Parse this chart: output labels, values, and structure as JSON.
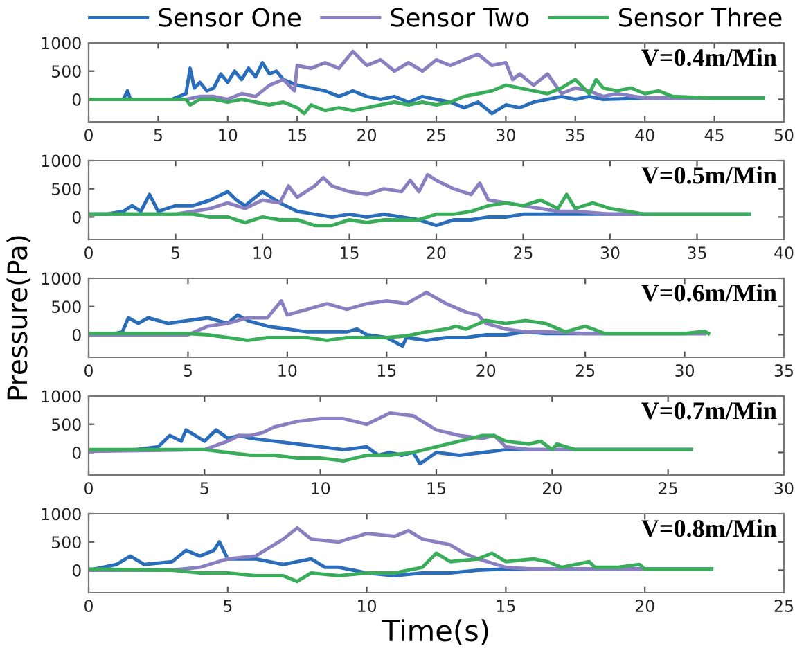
{
  "chart_data": [
    {
      "type": "line",
      "xlim": [
        0,
        50
      ],
      "xticks": [
        0,
        5,
        10,
        15,
        20,
        25,
        30,
        35,
        40,
        45,
        50
      ],
      "ylim": [
        -400,
        1000
      ],
      "yticks": [
        0,
        500,
        1000
      ],
      "grid": false,
      "legend": "top",
      "annotations": [
        "V=0.4m/Min"
      ],
      "series": [
        {
          "name": "Sensor One",
          "color": "#2a6ebb",
          "x": [
            0,
            2.5,
            2.8,
            3,
            6,
            6.5,
            7,
            7.3,
            7.6,
            8,
            8.5,
            9,
            9.5,
            10,
            10.5,
            11,
            11.5,
            12,
            12.5,
            13,
            13.5,
            14,
            15,
            16,
            17,
            18,
            19,
            20,
            21,
            22,
            23,
            24,
            25,
            26,
            27,
            28,
            29,
            30,
            31,
            32,
            33,
            34,
            35,
            36,
            37,
            40,
            45,
            48.5
          ],
          "values": [
            0,
            0,
            150,
            0,
            0,
            50,
            100,
            550,
            200,
            300,
            150,
            200,
            450,
            300,
            500,
            350,
            550,
            400,
            650,
            450,
            500,
            350,
            250,
            200,
            150,
            50,
            150,
            50,
            0,
            50,
            -50,
            50,
            0,
            -50,
            -150,
            -50,
            -250,
            -100,
            -150,
            -50,
            0,
            50,
            0,
            50,
            0,
            20,
            20,
            20
          ]
        },
        {
          "name": "Sensor Two",
          "color": "#8a7fc0",
          "x": [
            0,
            7,
            8,
            9,
            10,
            11,
            12,
            13,
            14,
            14.8,
            15,
            16,
            17,
            18,
            19,
            20,
            21,
            22,
            23,
            24,
            25,
            26,
            27,
            28,
            29,
            30,
            30.5,
            31,
            32,
            33,
            34,
            35,
            36,
            37,
            38,
            40,
            45,
            48.5
          ],
          "values": [
            0,
            0,
            50,
            50,
            0,
            100,
            50,
            250,
            350,
            150,
            600,
            550,
            650,
            550,
            850,
            600,
            700,
            500,
            650,
            500,
            700,
            600,
            700,
            800,
            600,
            650,
            350,
            450,
            250,
            450,
            100,
            200,
            150,
            50,
            100,
            20,
            20,
            20
          ]
        },
        {
          "name": "Sensor Three",
          "color": "#3aad5a",
          "x": [
            0,
            7,
            7.3,
            8,
            9,
            10,
            11,
            12,
            13,
            14,
            15,
            15.5,
            16,
            17,
            18,
            19,
            20,
            21,
            22,
            23,
            24,
            25,
            26,
            27,
            28,
            29,
            30,
            31,
            32,
            33,
            34,
            35,
            36,
            36.5,
            37,
            38,
            39,
            40,
            41,
            42,
            45,
            48.5
          ],
          "values": [
            0,
            0,
            -100,
            0,
            0,
            -50,
            0,
            -50,
            -100,
            -50,
            -150,
            -250,
            -100,
            -200,
            -150,
            -200,
            -150,
            -100,
            -50,
            -100,
            -50,
            -100,
            -50,
            50,
            100,
            150,
            250,
            200,
            150,
            100,
            200,
            350,
            100,
            350,
            200,
            150,
            200,
            100,
            150,
            50,
            20,
            20
          ]
        }
      ]
    },
    {
      "type": "line",
      "xlim": [
        0,
        40
      ],
      "xticks": [
        0,
        5,
        10,
        15,
        20,
        25,
        30,
        35,
        40
      ],
      "ylim": [
        -400,
        1000
      ],
      "yticks": [
        0,
        500,
        1000
      ],
      "grid": false,
      "annotations": [
        "V=0.5m/Min"
      ],
      "series": [
        {
          "color": "#2a6ebb",
          "x": [
            0,
            1,
            2,
            2.5,
            3,
            3.5,
            4,
            5,
            6,
            7,
            8,
            8.5,
            9,
            10,
            11,
            12,
            13,
            14,
            15,
            16,
            17,
            18,
            19,
            20,
            21,
            22,
            23,
            24,
            25,
            26,
            28,
            30,
            35,
            38
          ],
          "values": [
            50,
            50,
            100,
            200,
            100,
            400,
            100,
            200,
            200,
            300,
            450,
            300,
            200,
            450,
            250,
            100,
            50,
            0,
            50,
            0,
            50,
            0,
            -50,
            -150,
            -50,
            -50,
            0,
            0,
            50,
            50,
            50,
            50,
            50,
            50
          ]
        },
        {
          "color": "#8a7fc0",
          "x": [
            0,
            5,
            6,
            7,
            8,
            9,
            10,
            11,
            11.5,
            12,
            13,
            13.5,
            14,
            15,
            16,
            17,
            18,
            18.5,
            19,
            19.5,
            20,
            21,
            22,
            22.5,
            23,
            24,
            25,
            26,
            27,
            28,
            30,
            35,
            38
          ],
          "values": [
            50,
            50,
            100,
            150,
            250,
            150,
            300,
            250,
            550,
            350,
            550,
            700,
            550,
            450,
            400,
            500,
            450,
            650,
            450,
            750,
            650,
            500,
            400,
            600,
            300,
            250,
            200,
            150,
            100,
            100,
            50,
            50,
            50
          ]
        },
        {
          "color": "#3aad5a",
          "x": [
            0,
            6,
            7,
            8,
            9,
            10,
            11,
            12,
            13,
            14,
            15,
            16,
            17,
            18,
            19,
            20,
            21,
            22,
            23,
            24,
            25,
            26,
            27,
            27.5,
            28,
            29,
            30,
            31,
            32,
            35,
            38
          ],
          "values": [
            50,
            50,
            0,
            0,
            -100,
            0,
            -50,
            -50,
            -150,
            -150,
            -50,
            -100,
            -50,
            -50,
            -50,
            50,
            50,
            100,
            200,
            250,
            200,
            300,
            150,
            400,
            150,
            250,
            150,
            100,
            50,
            50,
            50
          ]
        }
      ]
    },
    {
      "type": "line",
      "xlim": [
        0,
        35
      ],
      "xticks": [
        0,
        5,
        10,
        15,
        20,
        25,
        30,
        35
      ],
      "ylim": [
        -400,
        1000
      ],
      "yticks": [
        0,
        500,
        1000
      ],
      "grid": false,
      "ylabel": "Pressure(Pa)",
      "annotations": [
        "V=0.6m/Min"
      ],
      "series": [
        {
          "color": "#2a6ebb",
          "x": [
            0,
            1,
            1.7,
            2,
            2.5,
            3,
            4,
            5,
            6,
            7,
            7.5,
            8,
            9,
            10,
            11,
            12,
            13,
            13.5,
            14,
            15,
            15.8,
            16,
            17,
            18,
            19,
            20,
            21,
            22,
            23,
            25,
            31
          ],
          "values": [
            20,
            0,
            50,
            300,
            200,
            300,
            200,
            250,
            300,
            200,
            350,
            250,
            150,
            100,
            50,
            50,
            50,
            100,
            0,
            -50,
            -200,
            -50,
            -100,
            -50,
            -50,
            0,
            0,
            50,
            20,
            20,
            20
          ]
        },
        {
          "color": "#8a7fc0",
          "x": [
            0,
            5,
            6,
            7,
            8,
            9,
            9.7,
            10,
            11,
            12,
            13,
            14,
            15,
            16,
            17,
            18,
            19,
            19.6,
            20,
            21,
            22,
            23,
            25,
            31
          ],
          "values": [
            0,
            0,
            150,
            200,
            300,
            300,
            600,
            350,
            450,
            550,
            450,
            550,
            600,
            550,
            750,
            550,
            400,
            350,
            200,
            100,
            50,
            50,
            20,
            20
          ]
        },
        {
          "color": "#3aad5a",
          "x": [
            0,
            5,
            6,
            7,
            8,
            9,
            10,
            11,
            12,
            13,
            14,
            15,
            16,
            17,
            18,
            18.5,
            19,
            20,
            21,
            22,
            23,
            24,
            25,
            26,
            30,
            31,
            31.2
          ],
          "values": [
            20,
            20,
            0,
            -50,
            -100,
            -50,
            -50,
            -50,
            -100,
            -50,
            -50,
            -50,
            -20,
            50,
            100,
            150,
            100,
            250,
            200,
            250,
            200,
            50,
            150,
            20,
            20,
            60,
            20
          ]
        }
      ]
    },
    {
      "type": "line",
      "xlim": [
        0,
        30
      ],
      "xticks": [
        0,
        5,
        10,
        15,
        20,
        25,
        30
      ],
      "ylim": [
        -400,
        1000
      ],
      "yticks": [
        0,
        500,
        1000
      ],
      "grid": false,
      "annotations": [
        "V=0.7m/Min"
      ],
      "series": [
        {
          "color": "#2a6ebb",
          "x": [
            0,
            2,
            3,
            3.5,
            4,
            4.2,
            5,
            5.5,
            6,
            6.5,
            7,
            8,
            9,
            10,
            11,
            12,
            12.5,
            13,
            13.5,
            14,
            14.3,
            15,
            16,
            17,
            18,
            19,
            20,
            26
          ],
          "values": [
            20,
            50,
            100,
            300,
            200,
            400,
            200,
            400,
            250,
            300,
            250,
            200,
            150,
            100,
            50,
            100,
            -50,
            0,
            -50,
            0,
            -200,
            0,
            -50,
            0,
            50,
            50,
            50,
            50
          ]
        },
        {
          "color": "#8a7fc0",
          "x": [
            0,
            5,
            6,
            6.5,
            7,
            7.5,
            8,
            9,
            10,
            11,
            12,
            13,
            14,
            15,
            16,
            17,
            17.5,
            18,
            19,
            20,
            26
          ],
          "values": [
            20,
            50,
            200,
            300,
            300,
            350,
            450,
            550,
            600,
            600,
            500,
            700,
            650,
            400,
            300,
            250,
            300,
            100,
            50,
            50,
            50
          ]
        },
        {
          "color": "#3aad5a",
          "x": [
            0,
            5,
            6,
            7,
            8,
            9,
            10,
            11,
            12,
            13,
            14,
            15,
            16,
            17,
            17.5,
            18,
            19,
            19.5,
            20,
            20.2,
            21,
            26
          ],
          "values": [
            50,
            50,
            0,
            -50,
            -50,
            -100,
            -100,
            -150,
            -50,
            -50,
            0,
            100,
            200,
            300,
            300,
            200,
            150,
            200,
            50,
            150,
            50,
            50
          ]
        }
      ]
    },
    {
      "type": "line",
      "xlim": [
        0,
        25
      ],
      "xticks": [
        0,
        5,
        10,
        15,
        20,
        25
      ],
      "ylim": [
        -400,
        1000
      ],
      "yticks": [
        0,
        500,
        1000
      ],
      "grid": false,
      "xlabel": "Time(s)",
      "annotations": [
        "V=0.8m/Min"
      ],
      "series": [
        {
          "color": "#2a6ebb",
          "x": [
            0,
            0.5,
            1,
            1.5,
            2,
            3,
            3.5,
            4,
            4.5,
            4.7,
            5,
            6,
            7,
            8,
            8.5,
            9,
            10,
            11,
            12,
            13,
            14,
            15,
            16,
            22.4
          ],
          "values": [
            0,
            50,
            100,
            250,
            100,
            150,
            350,
            250,
            350,
            500,
            200,
            200,
            100,
            200,
            50,
            50,
            -50,
            -100,
            -50,
            -50,
            0,
            20,
            20,
            20
          ]
        },
        {
          "color": "#8a7fc0",
          "x": [
            0,
            3,
            4,
            5,
            6,
            6.5,
            7,
            7.5,
            8,
            9,
            10,
            11,
            11.5,
            12,
            13,
            13.5,
            14,
            15,
            16,
            22.4
          ],
          "values": [
            0,
            0,
            50,
            200,
            250,
            400,
            550,
            750,
            550,
            500,
            650,
            600,
            700,
            550,
            450,
            300,
            200,
            50,
            20,
            20
          ]
        },
        {
          "color": "#3aad5a",
          "x": [
            0,
            3,
            4,
            5,
            6,
            7,
            7.5,
            8,
            9,
            10,
            11,
            12,
            12.5,
            13,
            14,
            14.5,
            15,
            16,
            16.5,
            17,
            18,
            18.2,
            19,
            19.8,
            20,
            22.4
          ],
          "values": [
            20,
            0,
            -50,
            -50,
            -100,
            -100,
            -200,
            -50,
            -100,
            -50,
            -50,
            50,
            300,
            150,
            200,
            300,
            150,
            200,
            150,
            50,
            150,
            50,
            50,
            100,
            20,
            20
          ]
        }
      ]
    }
  ]
}
